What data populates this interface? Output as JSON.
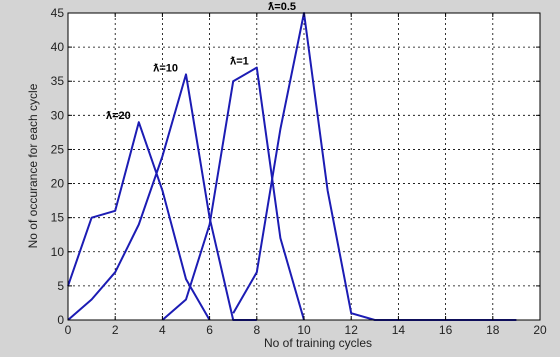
{
  "chart_data": {
    "type": "line",
    "title": "",
    "xlabel": "No of training cycles",
    "ylabel": "No of occurance for each cycle",
    "xlim": [
      0,
      20
    ],
    "ylim": [
      0,
      45
    ],
    "xticks": [
      "0",
      "2",
      "4",
      "6",
      "8",
      "10",
      "12",
      "14",
      "16",
      "18",
      "20"
    ],
    "yticks": [
      "0",
      "5",
      "10",
      "15",
      "20",
      "25",
      "30",
      "35",
      "40",
      "45"
    ],
    "grid": true,
    "colors": {
      "line": "#1c1cb4",
      "plot_bg": "#ffffff",
      "figure_bg": "#d4d4d4",
      "grid": "#000000"
    },
    "series": [
      {
        "name": "ƛ=20",
        "x": [
          0,
          1,
          2,
          3,
          4,
          5,
          6
        ],
        "y": [
          5,
          15,
          16,
          29,
          19,
          6,
          0
        ]
      },
      {
        "name": "ƛ=10",
        "x": [
          0,
          1,
          2,
          3,
          4,
          5,
          6,
          7,
          8
        ],
        "y": [
          0,
          3,
          7,
          14,
          24,
          36,
          15,
          0,
          0
        ]
      },
      {
        "name": "ƛ=1",
        "x": [
          4,
          5,
          6,
          7,
          8,
          9,
          10
        ],
        "y": [
          0,
          3,
          14,
          35,
          37,
          12,
          0
        ]
      },
      {
        "name": "ƛ=0.5",
        "x": [
          7,
          8,
          9,
          10,
          11,
          12,
          13,
          19
        ],
        "y": [
          1,
          7,
          28,
          45,
          19,
          1,
          0,
          0
        ]
      }
    ]
  }
}
